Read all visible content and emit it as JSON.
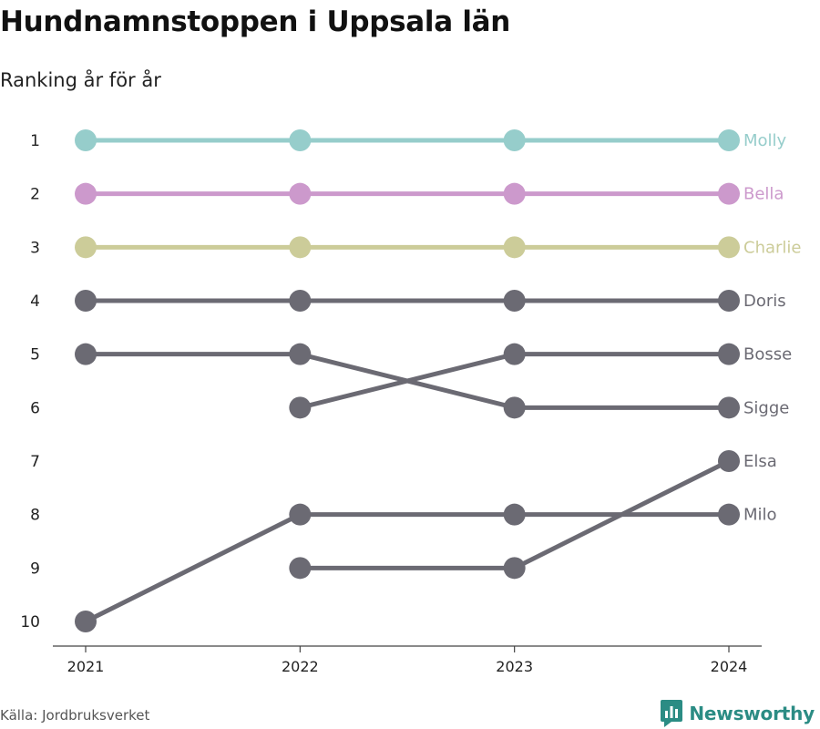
{
  "title": "Hundnamnstoppen i Uppsala län",
  "subtitle": "Ranking år för år",
  "source": "Källa: Jordbruksverket",
  "brand": {
    "name": "Newsworthy",
    "icon": "newsworthy-logo-icon",
    "color": "#2b8c84"
  },
  "chart_data": {
    "type": "line",
    "chart_subtype": "bump",
    "x": [
      "2021",
      "2022",
      "2023",
      "2024"
    ],
    "y_ticks": [
      "1",
      "2",
      "3",
      "4",
      "5",
      "6",
      "7",
      "8",
      "9",
      "10"
    ],
    "ylim": [
      1,
      10
    ],
    "y_inverted": true,
    "grid": false,
    "legend": "direct labels at right end of lines",
    "series": [
      {
        "name": "Molly",
        "values": [
          1,
          1,
          1,
          1
        ],
        "color": "#96cdcb"
      },
      {
        "name": "Bella",
        "values": [
          2,
          2,
          2,
          2
        ],
        "color": "#cc99cc"
      },
      {
        "name": "Charlie",
        "values": [
          3,
          3,
          3,
          3
        ],
        "color": "#cccc99"
      },
      {
        "name": "Doris",
        "values": [
          4,
          4,
          4,
          4
        ],
        "color": "#6b6a73"
      },
      {
        "name": "Bosse",
        "values": [
          null,
          6,
          5,
          5
        ],
        "color": "#6b6a73"
      },
      {
        "name": "Sigge",
        "values": [
          5,
          5,
          6,
          6
        ],
        "color": "#6b6a73"
      },
      {
        "name": "Elsa",
        "values": [
          null,
          9,
          9,
          7
        ],
        "color": "#6b6a73"
      },
      {
        "name": "Milo",
        "values": [
          10,
          8,
          8,
          8
        ],
        "color": "#6b6a73"
      }
    ]
  }
}
